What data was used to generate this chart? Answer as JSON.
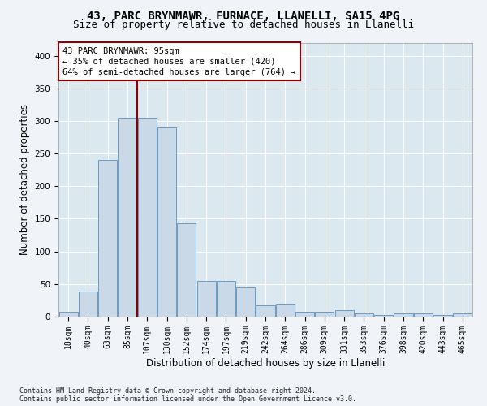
{
  "title1": "43, PARC BRYNMAWR, FURNACE, LLANELLI, SA15 4PG",
  "title2": "Size of property relative to detached houses in Llanelli",
  "xlabel": "Distribution of detached houses by size in Llanelli",
  "ylabel": "Number of detached properties",
  "footnote": "Contains HM Land Registry data © Crown copyright and database right 2024.\nContains public sector information licensed under the Open Government Licence v3.0.",
  "bar_labels": [
    "18sqm",
    "40sqm",
    "63sqm",
    "85sqm",
    "107sqm",
    "130sqm",
    "152sqm",
    "174sqm",
    "197sqm",
    "219sqm",
    "242sqm",
    "264sqm",
    "286sqm",
    "309sqm",
    "331sqm",
    "353sqm",
    "376sqm",
    "398sqm",
    "420sqm",
    "443sqm",
    "465sqm"
  ],
  "bar_values": [
    8,
    39,
    240,
    305,
    305,
    290,
    143,
    55,
    55,
    45,
    18,
    19,
    8,
    8,
    10,
    5,
    3,
    5,
    5,
    3,
    5
  ],
  "bar_color": "#c9d9e8",
  "bar_edge_color": "#5a8fc0",
  "vline_x": 3.5,
  "vline_color": "#8b0000",
  "annotation_text": "43 PARC BRYNMAWR: 95sqm\n← 35% of detached houses are smaller (420)\n64% of semi-detached houses are larger (764) →",
  "annotation_box_color": "#ffffff",
  "annotation_box_edge": "#8b0000",
  "ylim": [
    0,
    420
  ],
  "background_color": "#dce8f0",
  "grid_color": "#ffffff",
  "title_fontsize": 10,
  "subtitle_fontsize": 9,
  "tick_fontsize": 7,
  "ylabel_fontsize": 8.5,
  "xlabel_fontsize": 8.5,
  "footnote_fontsize": 6,
  "annotation_fontsize": 7.5
}
